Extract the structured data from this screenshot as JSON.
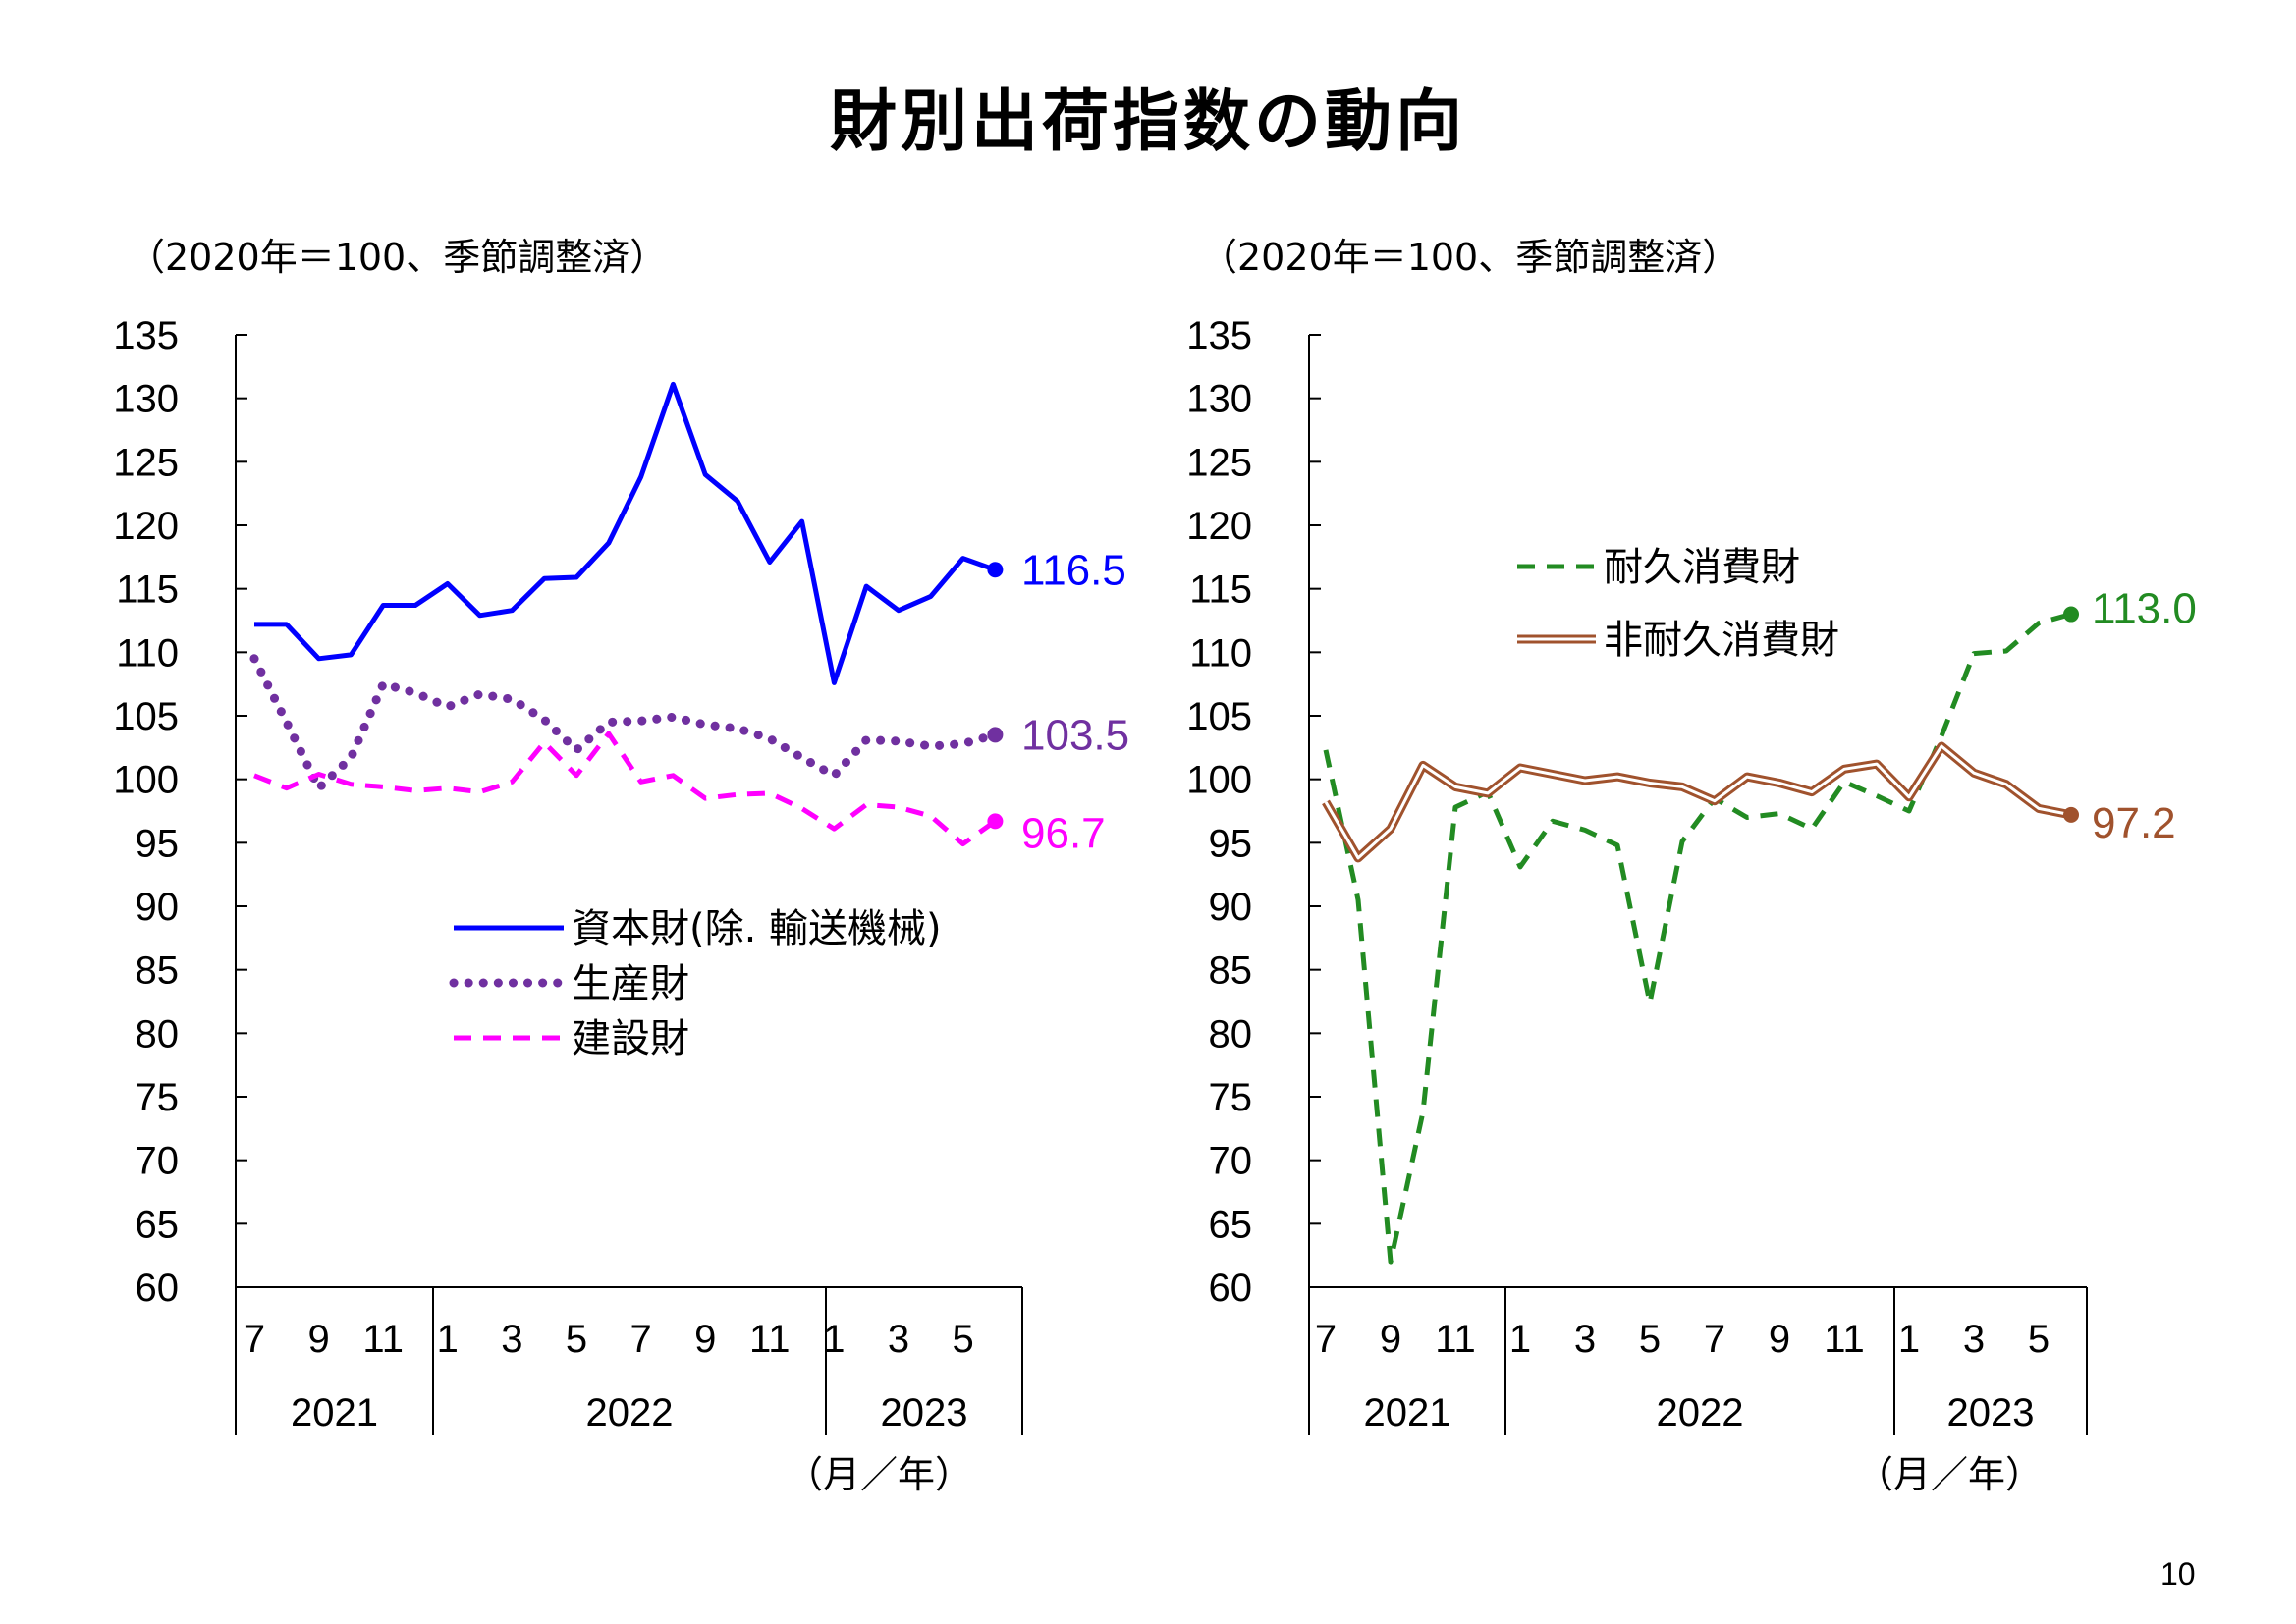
{
  "page": {
    "title": "財別出荷指数の動向",
    "page_number": "10"
  },
  "chart_data": [
    {
      "type": "line",
      "title": "",
      "note": "（2020年＝100、季節調整済）",
      "x_unit_label": "（月／年）",
      "ylim": [
        60,
        135
      ],
      "y_ticks": [
        "135",
        "130",
        "125",
        "120",
        "115",
        "110",
        "105",
        "100",
        "95",
        "90",
        "85",
        "80",
        "75",
        "70",
        "65",
        "60"
      ],
      "x": [
        "2021-07",
        "2021-08",
        "2021-09",
        "2021-10",
        "2021-11",
        "2021-12",
        "2022-01",
        "2022-02",
        "2022-03",
        "2022-04",
        "2022-05",
        "2022-06",
        "2022-07",
        "2022-08",
        "2022-09",
        "2022-10",
        "2022-11",
        "2022-12",
        "2023-01",
        "2023-02",
        "2023-03",
        "2023-04",
        "2023-05",
        "2023-06"
      ],
      "month_ticks": [
        "7",
        "9",
        "11",
        "1",
        "3",
        "5",
        "7",
        "9",
        "11",
        "1",
        "3",
        "5"
      ],
      "years": [
        "2021",
        "2022",
        "2023"
      ],
      "legend": {
        "position": "center-left"
      },
      "series": [
        {
          "name": "資本財(除. 輸送機械)",
          "color": "#0000ff",
          "style": "solid",
          "end_label": "116.5",
          "values": [
            112.2,
            112.2,
            109.5,
            109.8,
            113.7,
            113.7,
            115.4,
            112.9,
            113.3,
            115.8,
            115.9,
            118.6,
            123.8,
            131.1,
            124.0,
            121.9,
            117.1,
            120.3,
            107.6,
            115.2,
            113.3,
            114.4,
            117.4,
            116.5
          ]
        },
        {
          "name": "生産財",
          "color": "#7030a0",
          "style": "dotted",
          "end_label": "103.5",
          "values": [
            109.5,
            104.5,
            99.3,
            101.7,
            107.5,
            106.8,
            105.7,
            106.7,
            106.3,
            104.7,
            102.3,
            104.5,
            104.6,
            104.9,
            104.3,
            104.0,
            103.2,
            101.7,
            100.3,
            103.1,
            103.0,
            102.6,
            102.8,
            103.5
          ]
        },
        {
          "name": "建設財",
          "color": "#ff00ff",
          "style": "dashed",
          "end_label": "96.7",
          "values": [
            100.3,
            99.3,
            100.4,
            99.6,
            99.4,
            99.1,
            99.3,
            99.0,
            99.8,
            102.9,
            100.3,
            103.6,
            99.8,
            100.3,
            98.5,
            98.8,
            98.9,
            97.7,
            96.1,
            98.0,
            97.8,
            97.1,
            94.9,
            96.7
          ]
        }
      ]
    },
    {
      "type": "line",
      "title": "",
      "note": "（2020年＝100、季節調整済）",
      "x_unit_label": "（月／年）",
      "ylim": [
        60,
        135
      ],
      "y_ticks": [
        "135",
        "130",
        "125",
        "120",
        "115",
        "110",
        "105",
        "100",
        "95",
        "90",
        "85",
        "80",
        "75",
        "70",
        "65",
        "60"
      ],
      "x": [
        "2021-07",
        "2021-08",
        "2021-09",
        "2021-10",
        "2021-11",
        "2021-12",
        "2022-01",
        "2022-02",
        "2022-03",
        "2022-04",
        "2022-05",
        "2022-06",
        "2022-07",
        "2022-08",
        "2022-09",
        "2022-10",
        "2022-11",
        "2022-12",
        "2023-01",
        "2023-02",
        "2023-03",
        "2023-04",
        "2023-05",
        "2023-06"
      ],
      "month_ticks": [
        "7",
        "9",
        "11",
        "1",
        "3",
        "5",
        "7",
        "9",
        "11",
        "1",
        "3",
        "5"
      ],
      "years": [
        "2021",
        "2022",
        "2023"
      ],
      "legend": {
        "position": "top-center"
      },
      "series": [
        {
          "name": "耐久消費財",
          "color": "#228b22",
          "style": "dashed",
          "end_label": "113.0",
          "values": [
            102.3,
            90.5,
            62.0,
            73.8,
            97.8,
            99.0,
            93.1,
            96.7,
            96.0,
            94.8,
            82.4,
            95.1,
            98.5,
            97.0,
            97.3,
            96.1,
            99.8,
            98.7,
            97.5,
            103.4,
            109.9,
            110.1,
            112.3,
            113.0
          ]
        },
        {
          "name": "非耐久消費財",
          "color": "#a0522d",
          "style": "double",
          "end_label": "97.2",
          "values": [
            98.2,
            93.8,
            96.1,
            101.1,
            99.4,
            98.9,
            100.9,
            100.4,
            99.9,
            100.2,
            99.7,
            99.4,
            98.3,
            100.2,
            99.7,
            99.0,
            100.8,
            101.2,
            98.6,
            102.6,
            100.5,
            99.6,
            97.7,
            97.2
          ]
        }
      ]
    }
  ]
}
